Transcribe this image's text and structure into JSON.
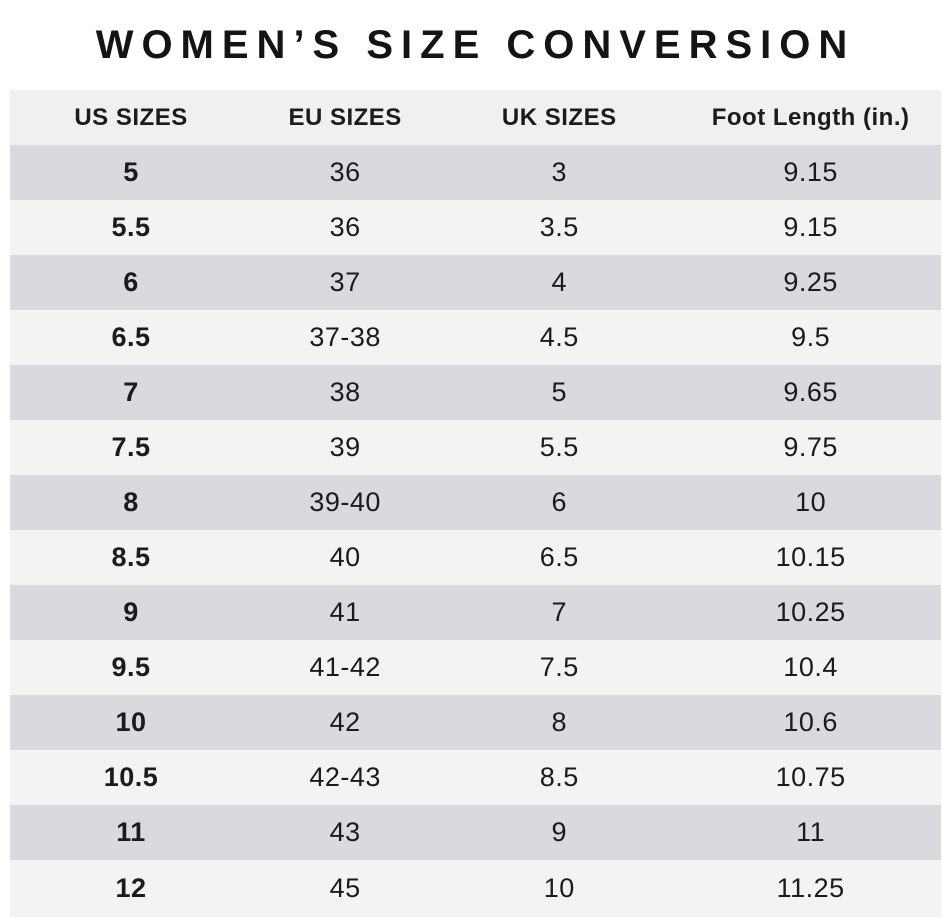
{
  "title": "WOMEN’S SIZE CONVERSION",
  "colors": {
    "row_alt": "#d9dadd",
    "row_base": "#f3f3f4",
    "header_bg": "#f0f0f1",
    "text": "#1b1b1d"
  },
  "chart_data": {
    "type": "table",
    "title": "WOMEN’S SIZE CONVERSION",
    "columns": [
      "US SIZES",
      "EU SIZES",
      "UK SIZES",
      "Foot Length (in.)"
    ],
    "rows": [
      [
        "5",
        "36",
        "3",
        "9.15"
      ],
      [
        "5.5",
        "36",
        "3.5",
        "9.15"
      ],
      [
        "6",
        "37",
        "4",
        "9.25"
      ],
      [
        "6.5",
        "37-38",
        "4.5",
        "9.5"
      ],
      [
        "7",
        "38",
        "5",
        "9.65"
      ],
      [
        "7.5",
        "39",
        "5.5",
        "9.75"
      ],
      [
        "8",
        "39-40",
        "6",
        "10"
      ],
      [
        "8.5",
        "40",
        "6.5",
        "10.15"
      ],
      [
        "9",
        "41",
        "7",
        "10.25"
      ],
      [
        "9.5",
        "41-42",
        "7.5",
        "10.4"
      ],
      [
        "10",
        "42",
        "8",
        "10.6"
      ],
      [
        "10.5",
        "42-43",
        "8.5",
        "10.75"
      ],
      [
        "11",
        "43",
        "9",
        "11"
      ],
      [
        "12",
        "45",
        "10",
        "11.25"
      ]
    ],
    "layout": {
      "row_striping": "alternating gray/light starting gray",
      "first_column_bold": true,
      "grid": false,
      "legend": "none"
    }
  }
}
